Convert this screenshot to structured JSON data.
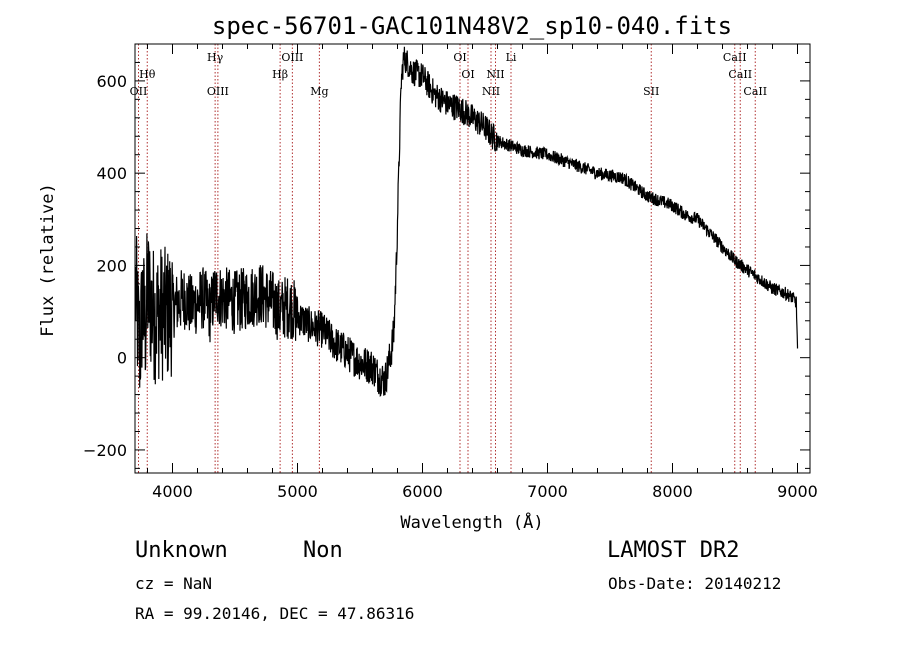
{
  "chart_data": {
    "type": "line",
    "title": "spec-56701-GAC101N48V2_sp10-040.fits",
    "xlabel": "Wavelength (Å)",
    "ylabel": "Flux (relative)",
    "xlim": [
      3700,
      9100
    ],
    "ylim": [
      -250,
      680
    ],
    "x_ticks": [
      4000,
      5000,
      6000,
      7000,
      8000,
      9000
    ],
    "y_ticks": [
      -200,
      0,
      200,
      400,
      600
    ],
    "grid": false,
    "line_color": "#000000",
    "marker_color": "#b03030",
    "series": [
      {
        "x": [
          3705,
          3720,
          3740,
          3760,
          3780,
          3800,
          3830,
          3860,
          3900,
          3950,
          4000,
          4050,
          4100,
          4150,
          4200,
          4250,
          4300,
          4340,
          4400,
          4500,
          4600,
          4700,
          4800,
          4860,
          4900,
          4950,
          5000,
          5100,
          5200,
          5300,
          5400,
          5500,
          5600,
          5650,
          5700,
          5740,
          5770,
          5790,
          5810,
          5830,
          5850,
          5880,
          5920,
          6000,
          6100,
          6200,
          6300,
          6400,
          6500,
          6560,
          6600,
          6700,
          6800,
          6900,
          7000,
          7100,
          7200,
          7300,
          7400,
          7500,
          7600,
          7700,
          7800,
          7900,
          8000,
          8100,
          8200,
          8300,
          8400,
          8500,
          8600,
          8700,
          8800,
          8900,
          8960,
          8990,
          9000
        ],
        "y": [
          150,
          80,
          20,
          120,
          60,
          150,
          110,
          90,
          100,
          90,
          110,
          120,
          130,
          110,
          120,
          130,
          100,
          140,
          130,
          120,
          130,
          140,
          120,
          100,
          110,
          110,
          90,
          70,
          60,
          30,
          10,
          -10,
          -20,
          -40,
          -50,
          0,
          50,
          200,
          400,
          600,
          650,
          640,
          620,
          610,
          570,
          550,
          540,
          520,
          500,
          480,
          470,
          460,
          450,
          445,
          440,
          430,
          420,
          410,
          400,
          395,
          390,
          370,
          350,
          340,
          330,
          310,
          300,
          270,
          240,
          210,
          190,
          170,
          150,
          140,
          130,
          120,
          20
        ]
      }
    ],
    "line_markers": [
      {
        "name": "Hθ",
        "x": 3798,
        "row": 2
      },
      {
        "name": "OII",
        "x": 3728,
        "row": 3
      },
      {
        "name": "Hγ",
        "x": 4341,
        "row": 1
      },
      {
        "name": "OIII",
        "x": 4363,
        "row": 3
      },
      {
        "name": "Hβ",
        "x": 4861,
        "row": 2
      },
      {
        "name": "OIII",
        "x": 4959,
        "row": 1
      },
      {
        "name": "Mg",
        "x": 5175,
        "row": 3
      },
      {
        "name": "OI",
        "x": 6300,
        "row": 1
      },
      {
        "name": "OI",
        "x": 6364,
        "row": 2
      },
      {
        "name": "NII",
        "x": 6548,
        "row": 3
      },
      {
        "name": "NII",
        "x": 6584,
        "row": 2
      },
      {
        "name": "Li",
        "x": 6708,
        "row": 1
      },
      {
        "name": "SII",
        "x": 7830,
        "row": 3
      },
      {
        "name": "CaII",
        "x": 8498,
        "row": 1
      },
      {
        "name": "CaII",
        "x": 8542,
        "row": 2
      },
      {
        "name": "CaII",
        "x": 8662,
        "row": 3
      }
    ]
  },
  "info": {
    "object_class": "Unknown",
    "subclass": "Non",
    "survey": "LAMOST DR2",
    "redshift": "cz = NaN",
    "obs_date": "Obs-Date: 20140212",
    "coords": "RA =  99.20146, DEC =  47.86316"
  }
}
